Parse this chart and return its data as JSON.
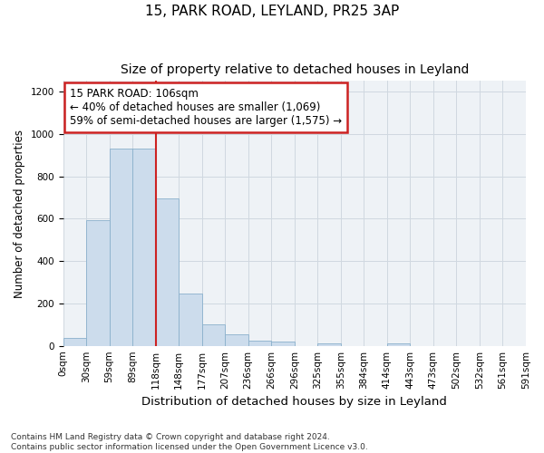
{
  "title": "15, PARK ROAD, LEYLAND, PR25 3AP",
  "subtitle": "Size of property relative to detached houses in Leyland",
  "xlabel": "Distribution of detached houses by size in Leyland",
  "ylabel": "Number of detached properties",
  "bar_heights": [
    35,
    595,
    930,
    930,
    695,
    245,
    100,
    55,
    25,
    20,
    0,
    10,
    0,
    0,
    10,
    0,
    0,
    0,
    0,
    0
  ],
  "bin_labels": [
    "0sqm",
    "30sqm",
    "59sqm",
    "89sqm",
    "118sqm",
    "148sqm",
    "177sqm",
    "207sqm",
    "236sqm",
    "266sqm",
    "296sqm",
    "325sqm",
    "355sqm",
    "384sqm",
    "414sqm",
    "443sqm",
    "473sqm",
    "502sqm",
    "532sqm",
    "561sqm",
    "591sqm"
  ],
  "bar_color": "#ccdcec",
  "bar_edge_color": "#8ab0cc",
  "grid_color": "#d0d8e0",
  "background_color": "#eef2f6",
  "annotation_line1": "15 PARK ROAD: 106sqm",
  "annotation_line2": "← 40% of detached houses are smaller (1,069)",
  "annotation_line3": "59% of semi-detached houses are larger (1,575) →",
  "annotation_box_edge": "#cc2222",
  "vline_color": "#cc2222",
  "vline_x": 3.5,
  "ylim": [
    0,
    1250
  ],
  "yticks": [
    0,
    200,
    400,
    600,
    800,
    1000,
    1200
  ],
  "footer_text": "Contains HM Land Registry data © Crown copyright and database right 2024.\nContains public sector information licensed under the Open Government Licence v3.0.",
  "title_fontsize": 11,
  "subtitle_fontsize": 10,
  "xlabel_fontsize": 9.5,
  "ylabel_fontsize": 8.5,
  "tick_fontsize": 7.5,
  "annotation_fontsize": 8.5,
  "footer_fontsize": 6.5
}
